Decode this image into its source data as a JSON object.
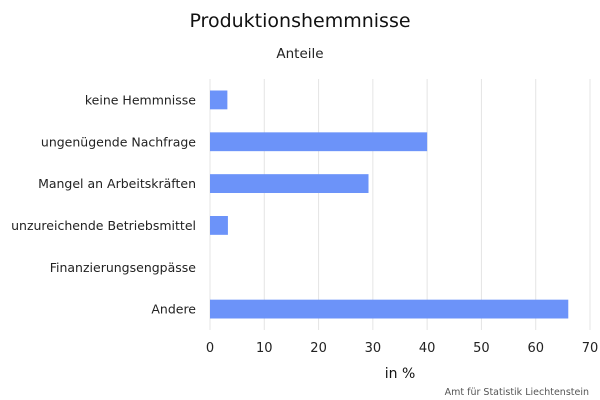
{
  "chart_data": {
    "type": "bar",
    "orientation": "horizontal",
    "title": "Produktionshemmnisse",
    "subtitle": "Anteile",
    "xlabel": "in %",
    "ylabel": "",
    "categories": [
      "keine Hemmnisse",
      "ungenügende Nachfrage",
      "Mangel an Arbeitskräften",
      "unzureichende Betriebsmittel",
      "Finanzierungsengpässe",
      "Andere"
    ],
    "values": [
      3.2,
      40.0,
      29.2,
      3.3,
      0,
      66.0
    ],
    "xlim": [
      0,
      70
    ],
    "xticks": [
      0,
      10,
      20,
      30,
      40,
      50,
      60,
      70
    ],
    "grid": true,
    "bar_color": "#6c93f9",
    "credit": "Amt für Statistik Liechtenstein"
  }
}
